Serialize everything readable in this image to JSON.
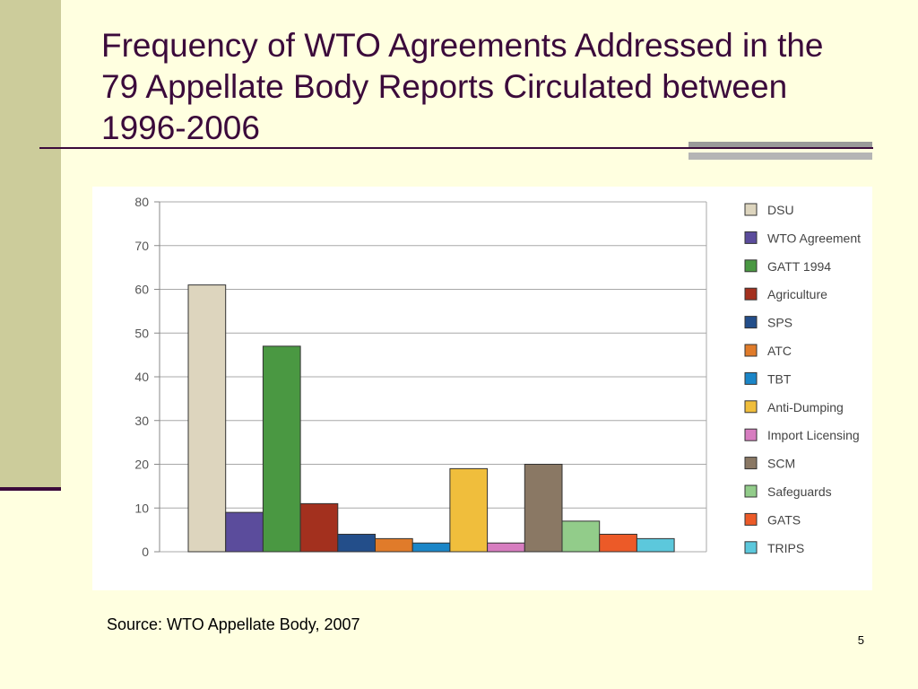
{
  "slide": {
    "title": "Frequency of WTO Agreements Addressed in the 79 Appellate Body Reports Circulated between 1996-2006",
    "source": "Source:  WTO Appellate Body, 2007",
    "page_number": "5"
  },
  "chart_data": {
    "type": "bar",
    "ylim": [
      0,
      80
    ],
    "yticks": [
      0,
      10,
      20,
      30,
      40,
      50,
      60,
      70,
      80
    ],
    "grid": true,
    "legend_position": "right",
    "categories": [
      "DSU",
      "WTO Agreement",
      "GATT 1994",
      "Agriculture",
      "SPS",
      "ATC",
      "TBT",
      "Anti-Dumping",
      "Import Licensing",
      "SCM",
      "Safeguards",
      "GATS",
      "TRIPS"
    ],
    "values": [
      61,
      9,
      47,
      11,
      4,
      3,
      2,
      19,
      2,
      20,
      7,
      4,
      3
    ],
    "colors": [
      "#DDD5BE",
      "#5B4C9C",
      "#4A9842",
      "#A3301E",
      "#234E8A",
      "#E07B2A",
      "#1B86C8",
      "#F0BE3C",
      "#D77DC0",
      "#8A7864",
      "#92CC8A",
      "#EC5A28",
      "#5CC8DC"
    ]
  }
}
